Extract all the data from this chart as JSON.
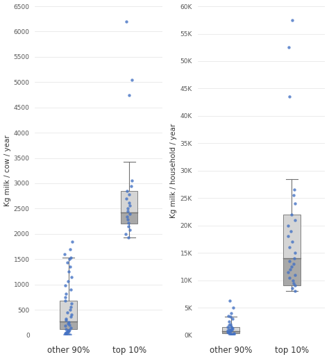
{
  "plot1": {
    "ylabel": "Kg milk / cow / year",
    "xtick_labels": [
      "other 90%",
      "top 10%"
    ],
    "ylim": [
      0,
      6500
    ],
    "yticks": [
      0,
      500,
      1000,
      1500,
      2000,
      2500,
      3000,
      3500,
      4000,
      4500,
      5000,
      5500,
      6000,
      6500
    ],
    "box1": {
      "q1": 120,
      "median": 270,
      "q3": 680,
      "whisker_low": 0,
      "whisker_high": 1530,
      "points": [
        0,
        5,
        10,
        20,
        30,
        40,
        50,
        60,
        70,
        80,
        90,
        100,
        120,
        150,
        180,
        200,
        230,
        260,
        290,
        320,
        360,
        400,
        450,
        500,
        560,
        620,
        680,
        750,
        820,
        900,
        980,
        1060,
        1150,
        1250,
        1350,
        1430,
        1500,
        1530,
        1600,
        1700,
        1850
      ]
    },
    "box2": {
      "q1": 2200,
      "median": 2420,
      "q3": 2850,
      "whisker_low": 1930,
      "whisker_high": 3420,
      "points": [
        1930,
        2000,
        2080,
        2150,
        2220,
        2280,
        2340,
        2400,
        2450,
        2500,
        2560,
        2620,
        2700,
        2780,
        2850,
        2950,
        3050,
        4750,
        5050,
        6200
      ]
    }
  },
  "plot2": {
    "ylabel": "Kg milk / household / year",
    "xtick_labels": [
      "other 90%",
      "top 10%"
    ],
    "ylim": [
      0,
      60000
    ],
    "ytick_vals": [
      0,
      5000,
      10000,
      15000,
      20000,
      25000,
      30000,
      35000,
      40000,
      45000,
      50000,
      55000,
      60000
    ],
    "ytick_labels": [
      "0K",
      "5K",
      "10K",
      "15K",
      "20K",
      "25K",
      "30K",
      "35K",
      "40K",
      "45K",
      "50K",
      "55K",
      "60K"
    ],
    "box1": {
      "q1": 300,
      "median": 700,
      "q3": 1400,
      "whisker_low": 0,
      "whisker_high": 3300,
      "points": [
        0,
        50,
        100,
        150,
        200,
        300,
        400,
        500,
        600,
        700,
        800,
        900,
        1000,
        1100,
        1200,
        1300,
        1400,
        1600,
        1800,
        2000,
        2500,
        3000,
        3300,
        3500,
        4000,
        5000,
        6300
      ]
    },
    "box2": {
      "q1": 9000,
      "median": 14000,
      "q3": 22000,
      "whisker_low": 8000,
      "whisker_high": 28500,
      "points": [
        8000,
        8500,
        9000,
        9500,
        10000,
        10500,
        11000,
        11500,
        12000,
        12500,
        13000,
        13500,
        14000,
        15000,
        16000,
        17000,
        18000,
        19000,
        20000,
        21000,
        22000,
        24000,
        25500,
        26500,
        43500,
        52500,
        57500
      ]
    }
  },
  "dot_color": "#4472c4",
  "box_color_lower": "#a8a8a8",
  "box_color_upper": "#d5d5d5",
  "whisker_color": "#707070",
  "median_color": "#707070",
  "background_color": "#ffffff",
  "grid_color": "#e8e8e8"
}
